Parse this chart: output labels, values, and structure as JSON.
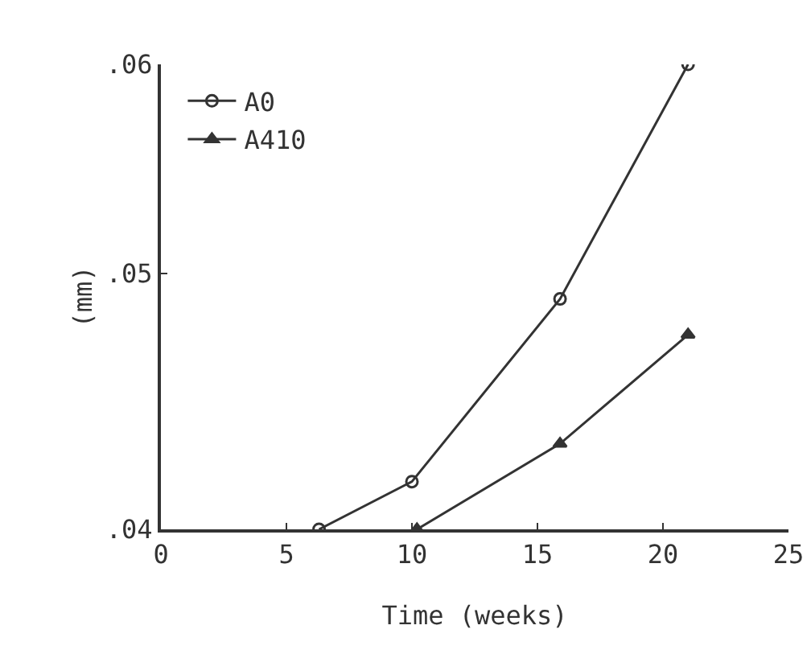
{
  "chart_data": {
    "type": "line",
    "xlabel": "Time (weeks)",
    "ylabel": "(mm)",
    "log": "y",
    "xlim": [
      0,
      25
    ],
    "xticks": [
      0,
      5,
      10,
      15,
      20,
      25
    ],
    "ylim": [
      0.04,
      0.06
    ],
    "yticks": [
      {
        "value": 0.04,
        "label": ".04"
      },
      {
        "value": 0.05,
        "label": ".05"
      },
      {
        "value": 0.06,
        "label": ".06"
      }
    ],
    "grid": false,
    "legend": "top left",
    "series": [
      {
        "name": "A0",
        "color": "#333333",
        "marker": "circle",
        "x": [
          6.3,
          10.0,
          15.9,
          21.0
        ],
        "values": [
          0.04,
          0.0417,
          0.0489,
          0.06
        ]
      },
      {
        "name": "A410",
        "color": "#333333",
        "marker": "triangle",
        "x": [
          10.2,
          15.9,
          21.0
        ],
        "values": [
          0.04,
          0.0431,
          0.0474
        ]
      }
    ]
  }
}
